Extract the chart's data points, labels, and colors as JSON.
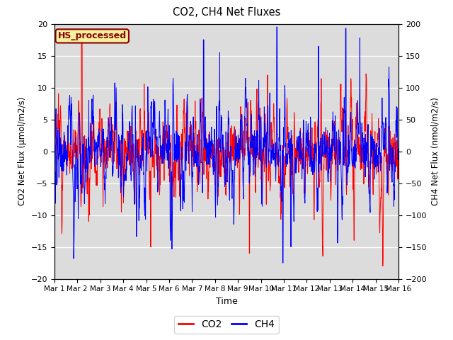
{
  "title": "CO2, CH4 Net Fluxes",
  "xlabel": "Time",
  "ylabel_left": "CO2 Net Flux (μmol/m2/s)",
  "ylabel_right": "CH4 Net Flux (nmol/m2/s)",
  "ylim_left": [
    -20,
    20
  ],
  "ylim_right": [
    -200,
    200
  ],
  "yticks_left": [
    -20,
    -15,
    -10,
    -5,
    0,
    5,
    10,
    15,
    20
  ],
  "yticks_right": [
    -200,
    -150,
    -100,
    -50,
    0,
    50,
    100,
    150,
    200
  ],
  "xtick_labels": [
    "Mar 1",
    "Mar 2",
    "Mar 3",
    "Mar 4",
    "Mar 5",
    "Mar 6",
    "Mar 7",
    "Mar 8",
    "Mar 9",
    "Mar 10",
    "Mar 11",
    "Mar 12",
    "Mar 13",
    "Mar 14",
    "Mar 15",
    "Mar 16"
  ],
  "co2_color": "#FF0000",
  "ch4_color": "#0000FF",
  "background_color": "#DCDCDC",
  "figure_bg": "#FFFFFF",
  "annotation_text": "HS_processed",
  "annotation_bg": "#F5F0A0",
  "annotation_border": "#8B0000",
  "legend_co2": "CO2",
  "legend_ch4": "CH4",
  "n_points": 1500,
  "seed": 12345
}
